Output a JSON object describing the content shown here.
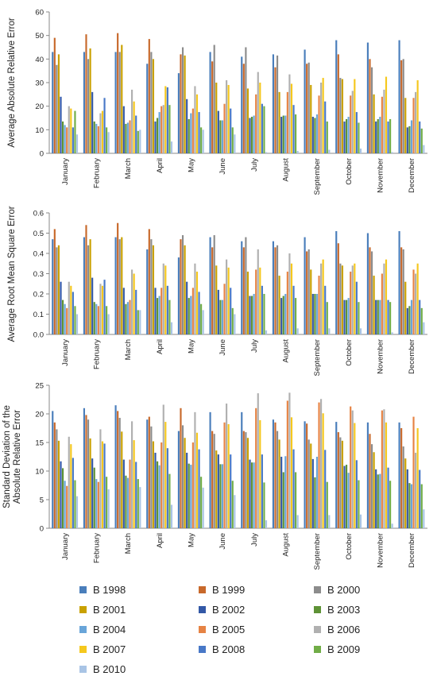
{
  "chart_data": [
    {
      "type": "bar",
      "ylabel": "Average Absolute Relative Error",
      "ylim": [
        0,
        60
      ],
      "yticks": [
        0,
        10,
        20,
        30,
        40,
        50,
        60
      ],
      "categories": [
        "January",
        "February",
        "March",
        "April",
        "May",
        "June",
        "July",
        "August",
        "September",
        "October",
        "November",
        "December"
      ],
      "series": [
        {
          "name": "B 1998",
          "values": [
            43,
            43,
            43,
            38,
            34,
            43,
            41,
            42,
            44,
            48,
            47,
            48
          ]
        },
        {
          "name": "B 1999",
          "values": [
            49,
            50.5,
            51,
            48.5,
            42,
            39,
            38,
            36.5,
            38,
            42,
            40,
            39.5
          ]
        },
        {
          "name": "B 2000",
          "values": [
            37.5,
            40,
            43,
            43,
            45,
            46,
            45,
            41.5,
            38.5,
            32,
            36.5,
            40
          ]
        },
        {
          "name": "B 2001",
          "values": [
            42,
            44.5,
            46,
            40,
            41.5,
            30,
            27.5,
            26,
            29,
            31.5,
            25,
            23.5
          ]
        },
        {
          "name": "B 2002",
          "values": [
            24,
            26,
            20,
            13.5,
            23,
            18,
            15,
            15.5,
            15.5,
            13.5,
            13.5,
            11
          ]
        },
        {
          "name": "B 2003",
          "values": [
            13.5,
            13.5,
            12.5,
            15,
            14.5,
            14,
            15.5,
            16,
            15,
            14.5,
            14.5,
            11.5
          ]
        },
        {
          "name": "B 2004",
          "values": [
            12,
            12.5,
            13,
            17.5,
            17,
            14,
            16,
            16,
            16.5,
            15.5,
            15.5,
            14
          ]
        },
        {
          "name": "B 2005",
          "values": [
            11,
            11.5,
            14,
            20,
            19,
            21,
            25,
            26,
            24.5,
            24.5,
            24,
            23.5
          ]
        },
        {
          "name": "B 2006",
          "values": [
            20,
            17,
            27,
            20.5,
            28.5,
            31,
            34.5,
            33.5,
            30,
            26.5,
            27,
            26
          ]
        },
        {
          "name": "B 2007",
          "values": [
            19,
            18,
            22,
            28.5,
            25,
            29,
            30,
            29.5,
            32,
            31.5,
            32.5,
            31
          ]
        },
        {
          "name": "B 2008",
          "values": [
            11,
            23.5,
            16,
            28,
            17.5,
            19,
            21,
            20.5,
            22,
            17.5,
            13.5,
            13.5
          ]
        },
        {
          "name": "B 2009",
          "values": [
            18,
            11,
            9.5,
            20.5,
            11,
            11,
            20,
            16.5,
            13.5,
            13,
            14.5,
            10.5
          ]
        },
        {
          "name": "B 2010",
          "values": [
            8,
            9,
            10,
            5,
            10,
            8,
            0.5,
            1,
            1.5,
            2,
            0.5,
            3.5
          ]
        }
      ]
    },
    {
      "type": "bar",
      "ylabel": "Average Root Mean Square Error",
      "ylim": [
        0,
        0.6
      ],
      "yticks": [
        0,
        0.1,
        0.2,
        0.3,
        0.4,
        0.5,
        0.6
      ],
      "categories": [
        "January",
        "February",
        "March",
        "April",
        "May",
        "June",
        "July",
        "August",
        "September",
        "October",
        "November",
        "December"
      ],
      "series": [
        {
          "name": "B 1998",
          "values": [
            0.47,
            0.48,
            0.48,
            0.42,
            0.38,
            0.48,
            0.46,
            0.46,
            0.48,
            0.51,
            0.5,
            0.51
          ]
        },
        {
          "name": "B 1999",
          "values": [
            0.52,
            0.54,
            0.55,
            0.52,
            0.47,
            0.43,
            0.43,
            0.43,
            0.41,
            0.45,
            0.43,
            0.43
          ]
        },
        {
          "name": "B 2000",
          "values": [
            0.43,
            0.44,
            0.47,
            0.47,
            0.49,
            0.49,
            0.48,
            0.44,
            0.42,
            0.35,
            0.41,
            0.42
          ]
        },
        {
          "name": "B 2001",
          "values": [
            0.44,
            0.47,
            0.48,
            0.44,
            0.44,
            0.34,
            0.31,
            0.29,
            0.32,
            0.34,
            0.29,
            0.26
          ]
        },
        {
          "name": "B 2002",
          "values": [
            0.26,
            0.28,
            0.23,
            0.23,
            0.26,
            0.22,
            0.19,
            0.18,
            0.2,
            0.17,
            0.17,
            0.13
          ]
        },
        {
          "name": "B 2003",
          "values": [
            0.17,
            0.16,
            0.15,
            0.18,
            0.18,
            0.17,
            0.19,
            0.19,
            0.2,
            0.17,
            0.17,
            0.14
          ]
        },
        {
          "name": "B 2004",
          "values": [
            0.15,
            0.15,
            0.16,
            0.19,
            0.19,
            0.17,
            0.2,
            0.2,
            0.2,
            0.18,
            0.17,
            0.17
          ]
        },
        {
          "name": "B 2005",
          "values": [
            0.13,
            0.14,
            0.17,
            0.23,
            0.23,
            0.25,
            0.32,
            0.31,
            0.29,
            0.31,
            0.3,
            0.32
          ]
        },
        {
          "name": "B 2006",
          "values": [
            0.26,
            0.25,
            0.32,
            0.35,
            0.35,
            0.37,
            0.42,
            0.4,
            0.35,
            0.34,
            0.35,
            0.3
          ]
        },
        {
          "name": "B 2007",
          "values": [
            0.24,
            0.24,
            0.3,
            0.34,
            0.31,
            0.33,
            0.33,
            0.35,
            0.37,
            0.35,
            0.37,
            0.35
          ]
        },
        {
          "name": "B 2008",
          "values": [
            0.21,
            0.27,
            0.22,
            0.24,
            0.21,
            0.23,
            0.24,
            0.24,
            0.24,
            0.26,
            0.17,
            0.17
          ]
        },
        {
          "name": "B 2009",
          "values": [
            0.14,
            0.14,
            0.12,
            0.17,
            0.15,
            0.13,
            0.2,
            0.18,
            0.16,
            0.16,
            0.16,
            0.13
          ]
        },
        {
          "name": "B 2010",
          "values": [
            0.1,
            0.1,
            0.12,
            0.06,
            0.12,
            0.1,
            0.02,
            0.03,
            0.03,
            0.03,
            0.01,
            0.06
          ]
        }
      ]
    },
    {
      "type": "bar",
      "ylabel": "Standard Deviation of the Absolute Relative Error",
      "ylim": [
        0,
        25
      ],
      "yticks": [
        0,
        5,
        10,
        15,
        20,
        25
      ],
      "categories": [
        "January",
        "February",
        "March",
        "April",
        "May",
        "June",
        "July",
        "August",
        "September",
        "October",
        "November",
        "December"
      ],
      "series": [
        {
          "name": "B 1998",
          "values": [
            20.5,
            21,
            21.5,
            19,
            17,
            20.3,
            20.3,
            19,
            18.7,
            18.6,
            18.5,
            18.5
          ]
        },
        {
          "name": "B 1999",
          "values": [
            18.5,
            19.8,
            20.5,
            19.5,
            21,
            17,
            17,
            18.5,
            18.3,
            16.8,
            16.5,
            17.5
          ]
        },
        {
          "name": "B 2000",
          "values": [
            17.3,
            19,
            19.3,
            17.8,
            18,
            16.5,
            16.8,
            17,
            15.5,
            15.9,
            14.7,
            14.3
          ]
        },
        {
          "name": "B 2001",
          "values": [
            15.3,
            15.7,
            16.9,
            15.2,
            15.8,
            13.6,
            15.8,
            15.5,
            14.8,
            15.3,
            13.3,
            12.2
          ]
        },
        {
          "name": "B 2002",
          "values": [
            11.7,
            12.2,
            12,
            13.2,
            13.2,
            12.9,
            12,
            12.5,
            12.1,
            10.9,
            10.3,
            10.3
          ]
        },
        {
          "name": "B 2003",
          "values": [
            10.5,
            10.6,
            9.2,
            11.7,
            11.3,
            11.2,
            11.5,
            9.8,
            8.9,
            11.1,
            9.4,
            7.9
          ]
        },
        {
          "name": "B 2004",
          "values": [
            8.3,
            8.6,
            8.8,
            11,
            11.1,
            11.2,
            11.5,
            12.6,
            12.5,
            9.7,
            9.5,
            7.7
          ]
        },
        {
          "name": "B 2005",
          "values": [
            7.4,
            8.1,
            12,
            15,
            15,
            18.5,
            21,
            22.3,
            22,
            21.3,
            20.6,
            19.5
          ]
        },
        {
          "name": "B 2006",
          "values": [
            16,
            17.3,
            18.7,
            21.6,
            20.3,
            21.8,
            23.6,
            23.7,
            22.6,
            20.6,
            20.8,
            13.2
          ]
        },
        {
          "name": "B 2007",
          "values": [
            14.7,
            15.2,
            15.4,
            18.6,
            16.7,
            18.2,
            18.9,
            19.4,
            20.1,
            18.4,
            18.5,
            17.5
          ]
        },
        {
          "name": "B 2008",
          "values": [
            12.3,
            14.8,
            11.6,
            14,
            13.8,
            12.9,
            12.9,
            13.8,
            13.7,
            11.9,
            10.6,
            10.2
          ]
        },
        {
          "name": "B 2009",
          "values": [
            8.4,
            9,
            8.6,
            9.5,
            9,
            8.3,
            8,
            9.8,
            8.1,
            8.4,
            8.3,
            7.7
          ]
        },
        {
          "name": "B 2010",
          "values": [
            5.6,
            6.8,
            7.2,
            4.1,
            7.1,
            5.8,
            1.4,
            2.3,
            2.3,
            2.4,
            0.8,
            3.3
          ]
        }
      ]
    }
  ],
  "colors": [
    "#4a7ebb",
    "#c8692b",
    "#8c8c8c",
    "#c9a100",
    "#3358a6",
    "#5e9236",
    "#69a5d9",
    "#e68344",
    "#b0b0b0",
    "#f5c81e",
    "#4878c7",
    "#71ad47",
    "#a9c4e5"
  ]
}
